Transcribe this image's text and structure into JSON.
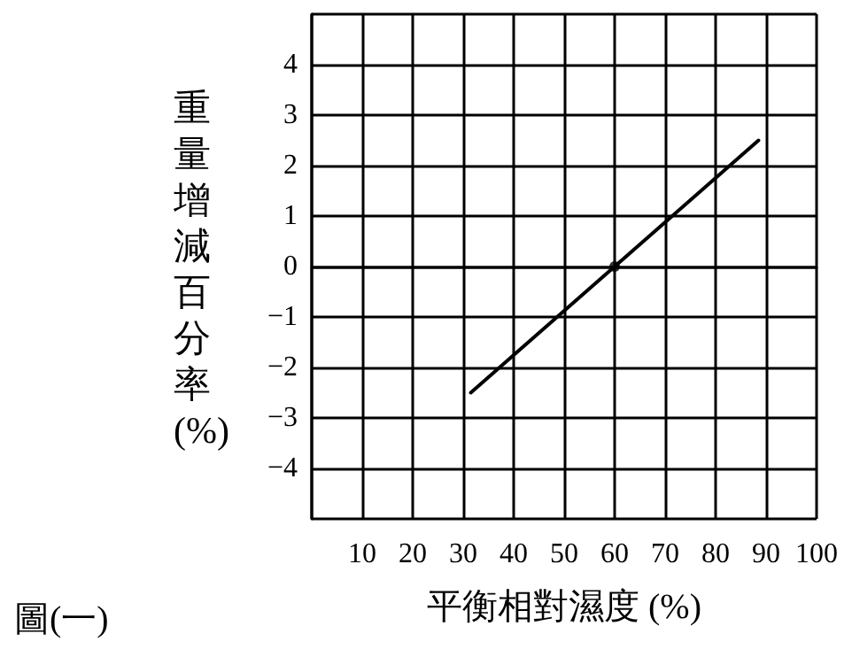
{
  "chart_data": {
    "type": "line",
    "xlabel": "平衡相對濕度 (%)",
    "ylabel": "重量增減百分率(%)",
    "annotations": [
      "圖(一)"
    ],
    "series": [
      {
        "color": "#000000",
        "x": [
          31.5,
          60,
          88.5
        ],
        "values": [
          -2.5,
          0,
          2.5
        ],
        "marker": "none"
      },
      {
        "type": "scatter",
        "color": "#000000",
        "x": [
          60
        ],
        "values": [
          0
        ],
        "marker": "circle"
      }
    ],
    "xlim": [
      0,
      100
    ],
    "xticks": [
      {
        "value": 0,
        "label": null
      },
      10,
      20,
      30,
      40,
      50,
      60,
      70,
      80,
      90,
      100
    ],
    "ylim": [
      -5,
      5
    ],
    "yticks": [
      {
        "value": -5,
        "label": null
      },
      "−4",
      -3,
      -2,
      -1,
      0,
      1,
      2,
      3,
      4,
      {
        "value": 5,
        "label": null
      }
    ],
    "grid": true
  }
}
